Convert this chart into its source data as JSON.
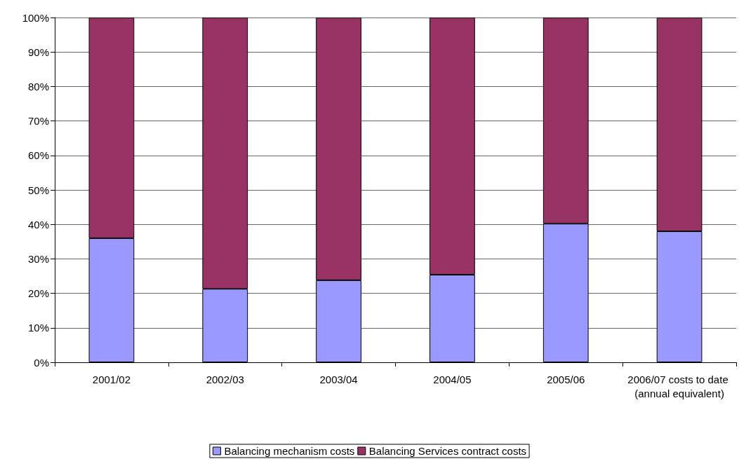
{
  "chart_data": {
    "type": "bar",
    "stacked": true,
    "categories": [
      "2001/02",
      "2002/03",
      "2003/04",
      "2004/05",
      "2005/06",
      "2006/07 costs to date (annual equivalent)"
    ],
    "series": [
      {
        "name": "Balancing mechanism costs",
        "color": "#9999ff",
        "values": [
          36.0,
          21.3,
          23.8,
          25.4,
          40.2,
          38.0
        ]
      },
      {
        "name": "Balancing Services contract costs",
        "color": "#993366",
        "values": [
          64.0,
          78.7,
          76.2,
          74.6,
          59.8,
          62.0
        ]
      }
    ],
    "ylim": [
      0,
      100
    ],
    "yticks": [
      {
        "value": 0,
        "label": "0%"
      },
      {
        "value": 10,
        "label": "10%"
      },
      {
        "value": 20,
        "label": "20%"
      },
      {
        "value": 30,
        "label": "30%"
      },
      {
        "value": 40,
        "label": "40%"
      },
      {
        "value": 50,
        "label": "50%"
      },
      {
        "value": 60,
        "label": "60%"
      },
      {
        "value": 70,
        "label": "70%"
      },
      {
        "value": 80,
        "label": "80%"
      },
      {
        "value": 90,
        "label": "90%"
      },
      {
        "value": 100,
        "label": "100%"
      }
    ],
    "grid": "y",
    "legend": "bottom"
  }
}
